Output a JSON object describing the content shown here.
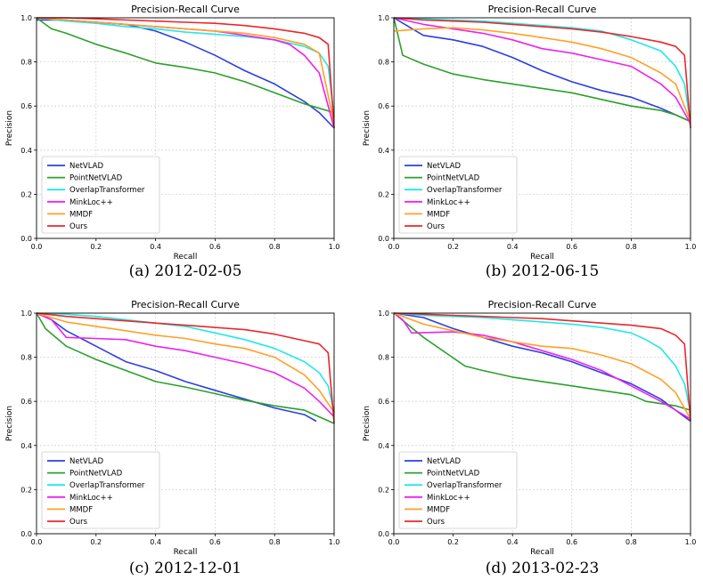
{
  "chart_data": [
    {
      "type": "line",
      "title": "Precision-Recall Curve",
      "caption": "(a) 2012-02-05",
      "xlabel": "Recall",
      "ylabel": "Precision",
      "xlim": [
        0,
        1
      ],
      "ylim": [
        0,
        1
      ],
      "xticks": [
        "0.0",
        "0.2",
        "0.4",
        "0.6",
        "0.8",
        "1.0"
      ],
      "yticks": [
        "0.0",
        "0.2",
        "0.4",
        "0.6",
        "0.8",
        "1.0"
      ],
      "grid": true,
      "legend": "bottom-left",
      "series": [
        {
          "name": "NetVLAD",
          "color": "#2b3fe0",
          "x": [
            0,
            0.1,
            0.2,
            0.3,
            0.4,
            0.5,
            0.6,
            0.7,
            0.8,
            0.9,
            0.95,
            1.0
          ],
          "y": [
            0.99,
            0.99,
            0.98,
            0.97,
            0.94,
            0.89,
            0.83,
            0.76,
            0.7,
            0.62,
            0.57,
            0.5
          ]
        },
        {
          "name": "PointNetVLAD",
          "color": "#2ca02c",
          "x": [
            0,
            0.05,
            0.1,
            0.2,
            0.3,
            0.4,
            0.5,
            0.6,
            0.7,
            0.8,
            0.9,
            0.95,
            1.0
          ],
          "y": [
            1.0,
            0.95,
            0.93,
            0.88,
            0.84,
            0.795,
            0.775,
            0.75,
            0.71,
            0.66,
            0.61,
            0.59,
            0.57
          ]
        },
        {
          "name": "OverlapTransformer",
          "color": "#22e8e8",
          "x": [
            0,
            0.1,
            0.2,
            0.3,
            0.4,
            0.5,
            0.6,
            0.7,
            0.8,
            0.9,
            0.95,
            0.98,
            1.0
          ],
          "y": [
            1.0,
            0.985,
            0.975,
            0.96,
            0.95,
            0.935,
            0.925,
            0.915,
            0.9,
            0.87,
            0.84,
            0.78,
            0.55
          ]
        },
        {
          "name": "MinkLoc++",
          "color": "#ee22ee",
          "x": [
            0,
            0.1,
            0.2,
            0.3,
            0.4,
            0.5,
            0.6,
            0.7,
            0.8,
            0.85,
            0.9,
            0.95,
            1.0
          ],
          "y": [
            1.0,
            0.99,
            0.98,
            0.97,
            0.96,
            0.95,
            0.94,
            0.92,
            0.9,
            0.88,
            0.83,
            0.75,
            0.5
          ]
        },
        {
          "name": "MMDF",
          "color": "#ffa028",
          "x": [
            0,
            0.1,
            0.2,
            0.3,
            0.4,
            0.5,
            0.6,
            0.7,
            0.8,
            0.9,
            0.95,
            1.0
          ],
          "y": [
            1.0,
            0.99,
            0.98,
            0.97,
            0.96,
            0.95,
            0.94,
            0.93,
            0.91,
            0.88,
            0.84,
            0.52
          ]
        },
        {
          "name": "Ours",
          "color": "#e8282c",
          "x": [
            0,
            0.1,
            0.2,
            0.3,
            0.4,
            0.5,
            0.6,
            0.7,
            0.8,
            0.9,
            0.95,
            0.98,
            1.0
          ],
          "y": [
            1.0,
            1.0,
            0.995,
            0.99,
            0.985,
            0.98,
            0.975,
            0.965,
            0.95,
            0.93,
            0.91,
            0.88,
            0.5
          ]
        }
      ]
    },
    {
      "type": "line",
      "title": "Precision-Recall Curve",
      "caption": "(b) 2012-06-15",
      "xlabel": "Recall",
      "ylabel": "Precision",
      "xlim": [
        0,
        1
      ],
      "ylim": [
        0,
        1
      ],
      "xticks": [
        "0.0",
        "0.2",
        "0.4",
        "0.6",
        "0.8",
        "1.0"
      ],
      "yticks": [
        "0.0",
        "0.2",
        "0.4",
        "0.6",
        "0.8",
        "1.0"
      ],
      "grid": true,
      "legend": "bottom-left",
      "series": [
        {
          "name": "NetVLAD",
          "color": "#2b3fe0",
          "x": [
            0,
            0.05,
            0.1,
            0.2,
            0.3,
            0.4,
            0.5,
            0.6,
            0.7,
            0.8,
            0.9,
            0.95,
            1.0
          ],
          "y": [
            1.0,
            0.96,
            0.92,
            0.9,
            0.87,
            0.82,
            0.76,
            0.71,
            0.67,
            0.64,
            0.59,
            0.56,
            0.53
          ]
        },
        {
          "name": "PointNetVLAD",
          "color": "#2ca02c",
          "x": [
            0,
            0.03,
            0.1,
            0.2,
            0.3,
            0.4,
            0.5,
            0.6,
            0.7,
            0.8,
            0.9,
            0.95,
            1.0
          ],
          "y": [
            1.0,
            0.83,
            0.79,
            0.745,
            0.72,
            0.7,
            0.68,
            0.66,
            0.63,
            0.6,
            0.58,
            0.56,
            0.53
          ]
        },
        {
          "name": "OverlapTransformer",
          "color": "#22e8e8",
          "x": [
            0,
            0.1,
            0.2,
            0.3,
            0.4,
            0.5,
            0.6,
            0.7,
            0.8,
            0.9,
            0.95,
            0.98,
            1.0
          ],
          "y": [
            1.0,
            0.995,
            0.99,
            0.985,
            0.975,
            0.965,
            0.955,
            0.94,
            0.9,
            0.85,
            0.78,
            0.7,
            0.52
          ]
        },
        {
          "name": "MinkLoc++",
          "color": "#ee22ee",
          "x": [
            0,
            0.1,
            0.2,
            0.3,
            0.4,
            0.5,
            0.6,
            0.7,
            0.8,
            0.9,
            0.95,
            1.0
          ],
          "y": [
            1.0,
            0.97,
            0.95,
            0.93,
            0.9,
            0.86,
            0.84,
            0.81,
            0.78,
            0.7,
            0.64,
            0.52
          ]
        },
        {
          "name": "MMDF",
          "color": "#ffa028",
          "x": [
            0,
            0.1,
            0.2,
            0.3,
            0.4,
            0.5,
            0.6,
            0.7,
            0.8,
            0.9,
            0.95,
            1.0
          ],
          "y": [
            0.94,
            0.95,
            0.955,
            0.945,
            0.93,
            0.91,
            0.89,
            0.86,
            0.82,
            0.75,
            0.7,
            0.53
          ]
        },
        {
          "name": "Ours",
          "color": "#e8282c",
          "x": [
            0,
            0.1,
            0.2,
            0.3,
            0.4,
            0.5,
            0.6,
            0.7,
            0.8,
            0.9,
            0.95,
            0.98,
            1.0
          ],
          "y": [
            1.0,
            0.99,
            0.985,
            0.98,
            0.97,
            0.96,
            0.95,
            0.935,
            0.915,
            0.89,
            0.87,
            0.83,
            0.5
          ]
        }
      ]
    },
    {
      "type": "line",
      "title": "Precision-Recall Curve",
      "caption": "(c) 2012-12-01",
      "xlabel": "Recall",
      "ylabel": "Precision",
      "xlim": [
        0,
        1
      ],
      "ylim": [
        0,
        1
      ],
      "xticks": [
        "0.0",
        "0.2",
        "0.4",
        "0.6",
        "0.8",
        "1.0"
      ],
      "yticks": [
        "0.0",
        "0.2",
        "0.4",
        "0.6",
        "0.8",
        "1.0"
      ],
      "grid": true,
      "legend": "bottom-left",
      "series": [
        {
          "name": "NetVLAD",
          "color": "#2b3fe0",
          "x": [
            0,
            0.05,
            0.1,
            0.2,
            0.3,
            0.4,
            0.5,
            0.6,
            0.7,
            0.8,
            0.9,
            0.94
          ],
          "y": [
            1.0,
            0.97,
            0.92,
            0.85,
            0.78,
            0.74,
            0.69,
            0.65,
            0.61,
            0.57,
            0.54,
            0.51
          ]
        },
        {
          "name": "PointNetVLAD",
          "color": "#2ca02c",
          "x": [
            0,
            0.03,
            0.1,
            0.2,
            0.3,
            0.4,
            0.5,
            0.6,
            0.7,
            0.8,
            0.9,
            0.95,
            1.0
          ],
          "y": [
            1.0,
            0.93,
            0.85,
            0.79,
            0.74,
            0.69,
            0.665,
            0.635,
            0.605,
            0.58,
            0.56,
            0.53,
            0.5
          ]
        },
        {
          "name": "OverlapTransformer",
          "color": "#22e8e8",
          "x": [
            0,
            0.1,
            0.2,
            0.3,
            0.4,
            0.5,
            0.6,
            0.7,
            0.8,
            0.85,
            0.9,
            0.95,
            0.98,
            1.0
          ],
          "y": [
            1.0,
            0.995,
            0.985,
            0.97,
            0.955,
            0.94,
            0.91,
            0.88,
            0.84,
            0.81,
            0.78,
            0.73,
            0.67,
            0.55
          ]
        },
        {
          "name": "MinkLoc++",
          "color": "#ee22ee",
          "x": [
            0,
            0.05,
            0.1,
            0.2,
            0.3,
            0.4,
            0.5,
            0.6,
            0.7,
            0.8,
            0.9,
            0.95,
            1.0
          ],
          "y": [
            1.0,
            0.97,
            0.89,
            0.885,
            0.88,
            0.85,
            0.83,
            0.8,
            0.77,
            0.73,
            0.66,
            0.6,
            0.53
          ]
        },
        {
          "name": "MMDF",
          "color": "#ffa028",
          "x": [
            0,
            0.1,
            0.2,
            0.3,
            0.4,
            0.5,
            0.6,
            0.7,
            0.8,
            0.9,
            0.95,
            1.0
          ],
          "y": [
            1.0,
            0.96,
            0.94,
            0.92,
            0.9,
            0.885,
            0.86,
            0.84,
            0.8,
            0.72,
            0.65,
            0.55
          ]
        },
        {
          "name": "Ours",
          "color": "#e8282c",
          "x": [
            0,
            0.1,
            0.2,
            0.3,
            0.4,
            0.5,
            0.6,
            0.7,
            0.8,
            0.9,
            0.95,
            0.98,
            1.0
          ],
          "y": [
            1.0,
            0.985,
            0.975,
            0.965,
            0.955,
            0.945,
            0.935,
            0.925,
            0.905,
            0.875,
            0.86,
            0.82,
            0.5
          ]
        }
      ]
    },
    {
      "type": "line",
      "title": "Precision-Recall Curve",
      "caption": "(d) 2013-02-23",
      "xlabel": "Recall",
      "ylabel": "Precision",
      "xlim": [
        0,
        1
      ],
      "ylim": [
        0,
        1
      ],
      "xticks": [
        "0.0",
        "0.2",
        "0.4",
        "0.6",
        "0.8",
        "1.0"
      ],
      "yticks": [
        "0.0",
        "0.2",
        "0.4",
        "0.6",
        "0.8",
        "1.0"
      ],
      "grid": true,
      "legend": "bottom-left",
      "series": [
        {
          "name": "NetVLAD",
          "color": "#2b3fe0",
          "x": [
            0,
            0.1,
            0.2,
            0.3,
            0.4,
            0.5,
            0.6,
            0.7,
            0.8,
            0.9,
            0.95,
            1.0
          ],
          "y": [
            1.0,
            0.98,
            0.93,
            0.89,
            0.85,
            0.82,
            0.78,
            0.73,
            0.68,
            0.61,
            0.56,
            0.51
          ]
        },
        {
          "name": "PointNetVLAD",
          "color": "#2ca02c",
          "x": [
            0,
            0.1,
            0.24,
            0.3,
            0.4,
            0.5,
            0.6,
            0.7,
            0.8,
            0.85,
            0.9,
            0.95,
            1.0
          ],
          "y": [
            1.0,
            0.89,
            0.76,
            0.74,
            0.71,
            0.69,
            0.67,
            0.65,
            0.63,
            0.6,
            0.59,
            0.58,
            0.56
          ]
        },
        {
          "name": "OverlapTransformer",
          "color": "#22e8e8",
          "x": [
            0,
            0.1,
            0.2,
            0.3,
            0.4,
            0.5,
            0.6,
            0.7,
            0.8,
            0.85,
            0.9,
            0.95,
            0.98,
            1.0
          ],
          "y": [
            1.0,
            0.99,
            0.985,
            0.98,
            0.97,
            0.96,
            0.95,
            0.935,
            0.91,
            0.88,
            0.84,
            0.76,
            0.68,
            0.55
          ]
        },
        {
          "name": "MinkLoc++",
          "color": "#ee22ee",
          "x": [
            0,
            0.03,
            0.06,
            0.2,
            0.3,
            0.4,
            0.5,
            0.6,
            0.7,
            0.8,
            0.9,
            0.95,
            1.0
          ],
          "y": [
            1.0,
            0.97,
            0.91,
            0.915,
            0.9,
            0.87,
            0.83,
            0.79,
            0.74,
            0.67,
            0.6,
            0.56,
            0.52
          ]
        },
        {
          "name": "MMDF",
          "color": "#ffa028",
          "x": [
            0,
            0.1,
            0.2,
            0.3,
            0.4,
            0.5,
            0.6,
            0.7,
            0.8,
            0.9,
            0.95,
            1.0
          ],
          "y": [
            1.0,
            0.95,
            0.92,
            0.89,
            0.87,
            0.85,
            0.84,
            0.81,
            0.77,
            0.7,
            0.64,
            0.52
          ]
        },
        {
          "name": "Ours",
          "color": "#e8282c",
          "x": [
            0,
            0.1,
            0.2,
            0.3,
            0.4,
            0.5,
            0.6,
            0.7,
            0.8,
            0.9,
            0.95,
            0.98,
            1.0
          ],
          "y": [
            1.0,
            0.995,
            0.99,
            0.985,
            0.98,
            0.975,
            0.965,
            0.955,
            0.945,
            0.93,
            0.9,
            0.86,
            0.51
          ]
        }
      ]
    }
  ]
}
